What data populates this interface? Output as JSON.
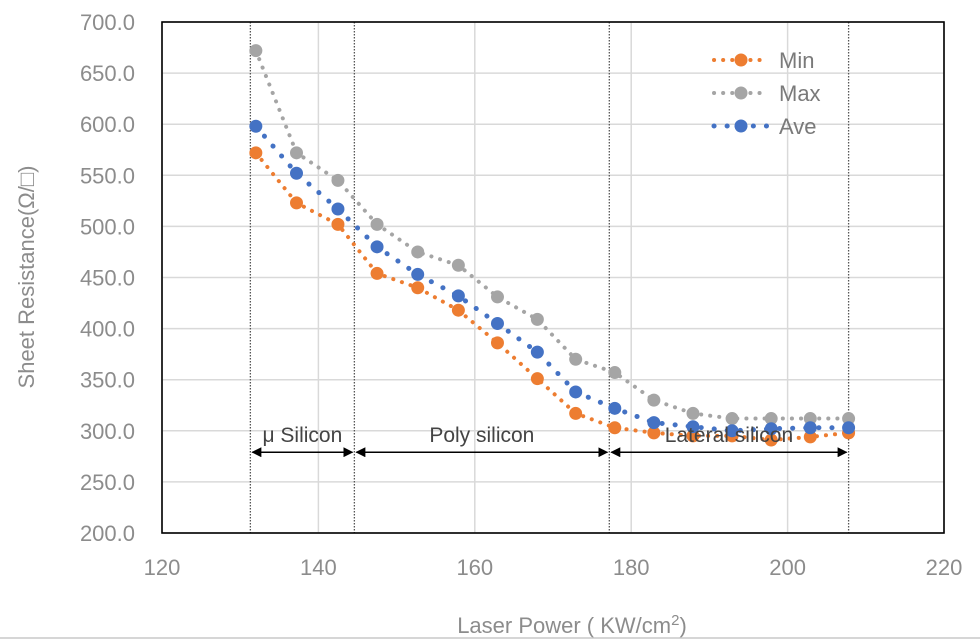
{
  "chart_data": {
    "type": "line",
    "title": "",
    "xlabel": "Laser Power ( KW/cm2)",
    "xlabel_main": "Laser Power ( KW/cm",
    "xlabel_sup": "2",
    "xlabel_end": ")",
    "ylabel": "Sheet Resistance(Ω/□)",
    "xlim": [
      120,
      220
    ],
    "ylim": [
      200,
      700
    ],
    "x_ticks": [
      "120",
      "140",
      "160",
      "180",
      "200",
      "220"
    ],
    "x_tick_values": [
      120,
      140,
      160,
      180,
      200,
      220
    ],
    "y_ticks": [
      "200.0",
      "250.0",
      "300.0",
      "350.0",
      "400.0",
      "450.0",
      "500.0",
      "550.0",
      "600.0",
      "650.0",
      "700.0"
    ],
    "y_tick_values": [
      200,
      250,
      300,
      350,
      400,
      450,
      500,
      550,
      600,
      650,
      700
    ],
    "grid": true,
    "legend_position": "top-right",
    "x": [
      132,
      137.2,
      142.5,
      147.5,
      152.7,
      157.9,
      162.9,
      168,
      172.9,
      177.9,
      182.9,
      187.9,
      192.9,
      197.9,
      202.9,
      207.8
    ],
    "series": [
      {
        "name": "Min",
        "color": "#ed7d31",
        "values": [
          572,
          523,
          502,
          454,
          440,
          418,
          386,
          351,
          317,
          303,
          298,
          295,
          295,
          291,
          294,
          298
        ]
      },
      {
        "name": "Max",
        "color": "#a5a5a5",
        "values": [
          672,
          572,
          545,
          502,
          475,
          462,
          431,
          409,
          370,
          357,
          330,
          317,
          312,
          312,
          312,
          312
        ]
      },
      {
        "name": "Ave",
        "color": "#4472c4",
        "values": [
          598,
          552,
          517,
          480,
          453,
          432,
          405,
          377,
          338,
          322,
          308,
          304,
          300,
          302,
          303,
          303
        ]
      }
    ],
    "region_boundaries": [
      131.3,
      144.6,
      177.2,
      207.8
    ],
    "regions": [
      {
        "label": "μ Silicon",
        "from": 131.3,
        "to": 144.6
      },
      {
        "label": "Poly silicon",
        "from": 144.6,
        "to": 177.2
      },
      {
        "label": "Lateral silicon",
        "from": 177.2,
        "to": 207.8
      }
    ],
    "region_label_value": 280
  }
}
